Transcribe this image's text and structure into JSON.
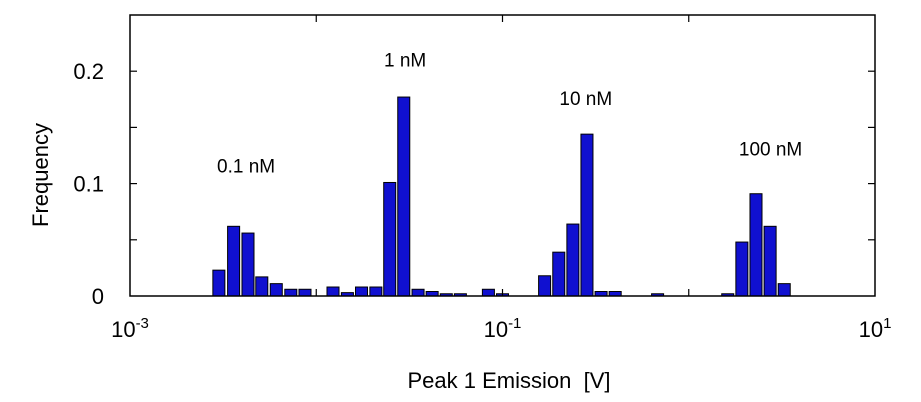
{
  "chart_data": {
    "type": "bar",
    "title": "",
    "xlabel": "Peak 1 Emission  [V]",
    "ylabel": "Frequency",
    "x_scale": "log",
    "xlim": [
      0.001,
      10
    ],
    "ylim": [
      0,
      0.25
    ],
    "x_ticks": [
      {
        "value": 0.001,
        "base": "10",
        "exp": "-3"
      },
      {
        "value": 0.1,
        "base": "10",
        "exp": "-1"
      },
      {
        "value": 10,
        "base": "10",
        "exp": "1"
      }
    ],
    "y_ticks": [
      {
        "value": 0,
        "label": "0"
      },
      {
        "value": 0.1,
        "label": "0.1"
      },
      {
        "value": 0.2,
        "label": "0.2"
      }
    ],
    "bar_color": "#1010d0",
    "bar_edge_color": "#000000",
    "grid": false,
    "bars": [
      {
        "x": 0.003,
        "y": 0.023
      },
      {
        "x": 0.0036,
        "y": 0.062
      },
      {
        "x": 0.0043,
        "y": 0.056
      },
      {
        "x": 0.0051,
        "y": 0.017
      },
      {
        "x": 0.0061,
        "y": 0.011
      },
      {
        "x": 0.0073,
        "y": 0.006
      },
      {
        "x": 0.0087,
        "y": 0.006
      },
      {
        "x": 0.0123,
        "y": 0.008
      },
      {
        "x": 0.0147,
        "y": 0.003
      },
      {
        "x": 0.0175,
        "y": 0.008
      },
      {
        "x": 0.0209,
        "y": 0.008
      },
      {
        "x": 0.0248,
        "y": 0.101
      },
      {
        "x": 0.0295,
        "y": 0.177
      },
      {
        "x": 0.0352,
        "y": 0.006
      },
      {
        "x": 0.0419,
        "y": 0.004
      },
      {
        "x": 0.0499,
        "y": 0.002
      },
      {
        "x": 0.0594,
        "y": 0.002
      },
      {
        "x": 0.084,
        "y": 0.006
      },
      {
        "x": 0.1,
        "y": 0.002
      },
      {
        "x": 0.1683,
        "y": 0.018
      },
      {
        "x": 0.2005,
        "y": 0.039
      },
      {
        "x": 0.2387,
        "y": 0.064
      },
      {
        "x": 0.2841,
        "y": 0.144
      },
      {
        "x": 0.3383,
        "y": 0.004
      },
      {
        "x": 0.4027,
        "y": 0.004
      },
      {
        "x": 0.6803,
        "y": 0.002
      },
      {
        "x": 1.6193,
        "y": 0.002
      },
      {
        "x": 1.9283,
        "y": 0.048
      },
      {
        "x": 2.2961,
        "y": 0.091
      },
      {
        "x": 2.7342,
        "y": 0.062
      },
      {
        "x": 3.2558,
        "y": 0.011
      }
    ],
    "annotations": [
      {
        "text": "0.1 nM",
        "x": 0.0042,
        "y": 0.11
      },
      {
        "text": "1 nM",
        "x": 0.03,
        "y": 0.204
      },
      {
        "text": "10 nM",
        "x": 0.28,
        "y": 0.17
      },
      {
        "text": "100 nM",
        "x": 2.75,
        "y": 0.125
      }
    ]
  }
}
